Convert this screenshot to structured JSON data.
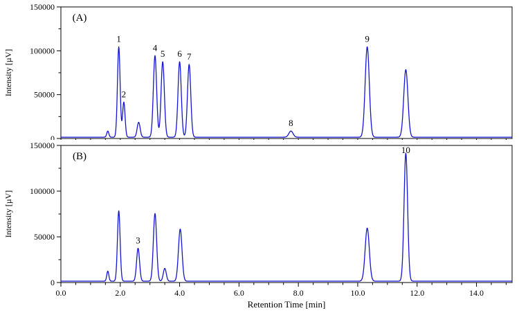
{
  "figure": {
    "kind": "dual-panel-chromatogram",
    "background": "#ffffff",
    "axis_color": "#000000",
    "text_color": "#000000"
  },
  "chart_data": [
    {
      "type": "line",
      "panel_label": "(A)",
      "xlabel": "",
      "ylabel": "Intensity [µV]",
      "show_x_tick_labels": false,
      "xlim": [
        0.0,
        15.2
      ],
      "ylim": [
        0,
        150000
      ],
      "xticks_major": [
        0.0,
        2.0,
        4.0,
        6.0,
        8.0,
        10.0,
        12.0,
        14.0
      ],
      "xtick_minor_step": 0.5,
      "yticks_major": [
        0,
        50000,
        100000,
        150000
      ],
      "ytick_minor_step": 25000,
      "line_color": "#1414d2",
      "baseline_uV": 1500,
      "peaks": [
        {
          "label": "",
          "rt_min": 1.58,
          "height_uV": 7000,
          "sigma_min": 0.035
        },
        {
          "label": "1",
          "rt_min": 1.95,
          "height_uV": 103000,
          "sigma_min": 0.045
        },
        {
          "label": "2",
          "rt_min": 2.12,
          "height_uV": 40000,
          "sigma_min": 0.042
        },
        {
          "label": "",
          "rt_min": 2.62,
          "height_uV": 17000,
          "sigma_min": 0.05
        },
        {
          "label": "4",
          "rt_min": 3.17,
          "height_uV": 93000,
          "sigma_min": 0.055
        },
        {
          "label": "5",
          "rt_min": 3.43,
          "height_uV": 86000,
          "sigma_min": 0.055
        },
        {
          "label": "6",
          "rt_min": 4.0,
          "height_uV": 86000,
          "sigma_min": 0.055
        },
        {
          "label": "7",
          "rt_min": 4.32,
          "height_uV": 83000,
          "sigma_min": 0.055
        },
        {
          "label": "8",
          "rt_min": 7.75,
          "height_uV": 7000,
          "sigma_min": 0.07
        },
        {
          "label": "9",
          "rt_min": 10.32,
          "height_uV": 103000,
          "sigma_min": 0.07
        },
        {
          "label": "",
          "rt_min": 11.62,
          "height_uV": 77000,
          "sigma_min": 0.07
        }
      ]
    },
    {
      "type": "line",
      "panel_label": "(B)",
      "xlabel": "Retention Time [min]",
      "ylabel": "Intensity [µV]",
      "show_x_tick_labels": true,
      "xlim": [
        0.0,
        15.2
      ],
      "ylim": [
        0,
        150000
      ],
      "xticks_major": [
        0.0,
        2.0,
        4.0,
        6.0,
        8.0,
        10.0,
        12.0,
        14.0
      ],
      "xtick_minor_step": 0.5,
      "yticks_major": [
        0,
        50000,
        100000,
        150000
      ],
      "ytick_minor_step": 25000,
      "line_color": "#1414d2",
      "baseline_uV": 1500,
      "peaks": [
        {
          "label": "",
          "rt_min": 1.58,
          "height_uV": 11000,
          "sigma_min": 0.035
        },
        {
          "label": "",
          "rt_min": 1.95,
          "height_uV": 77000,
          "sigma_min": 0.045
        },
        {
          "label": "3",
          "rt_min": 2.6,
          "height_uV": 36000,
          "sigma_min": 0.05
        },
        {
          "label": "",
          "rt_min": 3.17,
          "height_uV": 74000,
          "sigma_min": 0.055
        },
        {
          "label": "",
          "rt_min": 3.5,
          "height_uV": 14000,
          "sigma_min": 0.05
        },
        {
          "label": "",
          "rt_min": 4.02,
          "height_uV": 57000,
          "sigma_min": 0.06
        },
        {
          "label": "",
          "rt_min": 10.32,
          "height_uV": 58000,
          "sigma_min": 0.07
        },
        {
          "label": "10",
          "rt_min": 11.62,
          "height_uV": 140000,
          "sigma_min": 0.06
        }
      ]
    }
  ]
}
